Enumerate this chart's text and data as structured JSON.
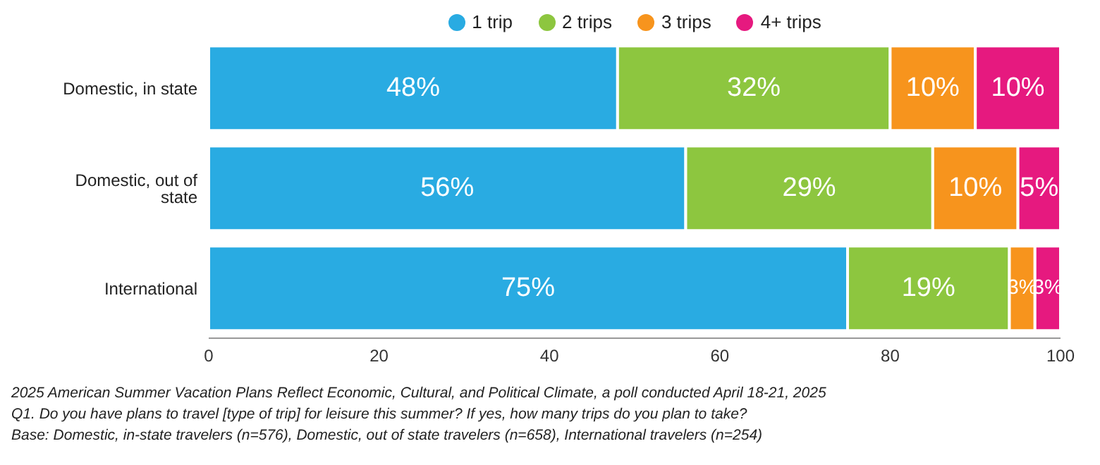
{
  "chart_data": {
    "type": "bar",
    "orientation": "horizontal",
    "stacked": true,
    "categories": [
      "Domestic, in state",
      "Domestic, out of state",
      "International"
    ],
    "series": [
      {
        "name": "1 trip",
        "color": "#29abe2",
        "values": [
          48,
          56,
          75
        ],
        "value_labels": [
          "48%",
          "56%",
          "75%"
        ]
      },
      {
        "name": "2 trips",
        "color": "#8dc63f",
        "values": [
          32,
          29,
          19
        ],
        "value_labels": [
          "32%",
          "29%",
          "19%"
        ]
      },
      {
        "name": "3 trips",
        "color": "#f7941d",
        "values": [
          10,
          10,
          3
        ],
        "value_labels": [
          "10%",
          "10%",
          "3%"
        ]
      },
      {
        "name": "4+ trips",
        "color": "#e6197f",
        "values": [
          10,
          5,
          3
        ],
        "value_labels": [
          "10%",
          "5%",
          "3%"
        ]
      }
    ],
    "xlim": [
      0,
      100
    ],
    "xticks": [
      0,
      20,
      40,
      60,
      80,
      100
    ],
    "grid": false,
    "legend": "top",
    "annotations": [
      "2025 American Summer Vacation Plans Reflect Economic, Cultural, and Political Climate, a poll conducted April 18-21, 2025",
      "Q1. Do you have plans to travel [type of trip] for leisure this summer? If yes, how many trips do you plan to take?",
      "Base: Domestic, in-state travelers (n=576), Domestic, out of state travelers (n=658), International travelers (n=254)"
    ]
  }
}
